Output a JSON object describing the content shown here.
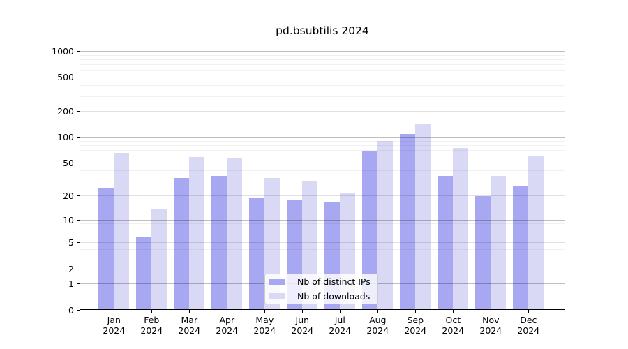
{
  "chart_data": {
    "type": "bar",
    "title": "pd.bsubtilis 2024",
    "categories": [
      "Jan",
      "Feb",
      "Mar",
      "Apr",
      "May",
      "Jun",
      "Jul",
      "Aug",
      "Sep",
      "Oct",
      "Nov",
      "Dec"
    ],
    "year": "2024",
    "series": [
      {
        "name": "Nb of distinct IPs",
        "color": "#a8a8f2",
        "values": [
          25,
          6,
          33,
          35,
          19,
          18,
          17,
          68,
          110,
          35,
          20,
          26
        ]
      },
      {
        "name": "Nb of downloads",
        "color": "#d9d9f6",
        "values": [
          65,
          14,
          58,
          56,
          33,
          30,
          22,
          90,
          143,
          75,
          35,
          60
        ]
      }
    ],
    "xlabel": "",
    "ylabel": "",
    "yscale": "log1p",
    "ylim": [
      0,
      1200
    ],
    "yticks": [
      0,
      1,
      2,
      5,
      10,
      20,
      50,
      100,
      200,
      500,
      1000
    ],
    "ytick_major": [
      1,
      10,
      100,
      1000
    ],
    "grid": true,
    "legend_position": "lower center"
  }
}
